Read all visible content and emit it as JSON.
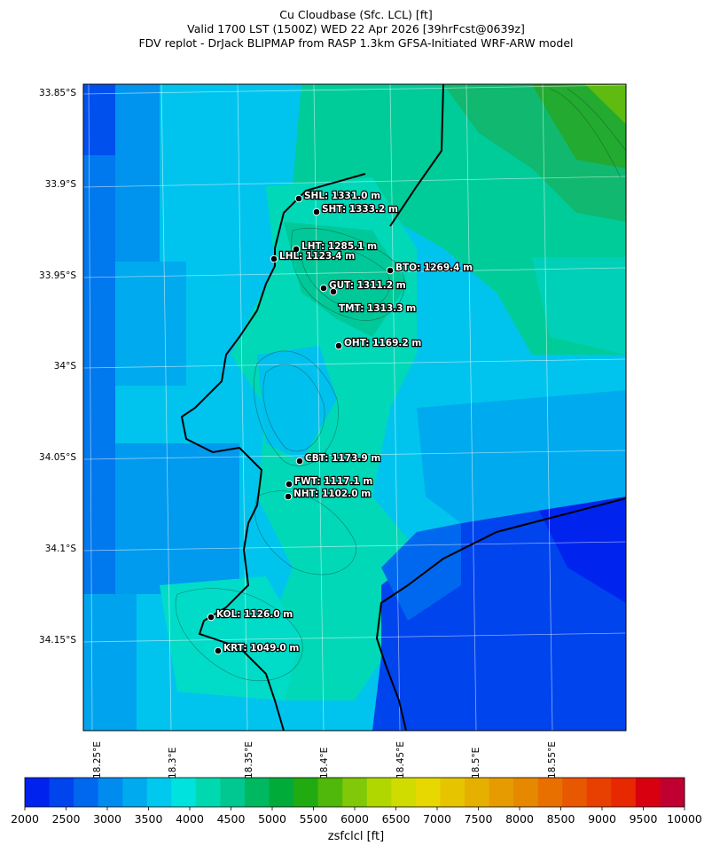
{
  "title": {
    "line1": "Cu Cloudbase (Sfc. LCL) [ft]",
    "line2": "Valid 1700 LST (1500Z) WED 22 Apr 2026 [39hrFcst@0639z]",
    "line3": "FDV replot - DrJack BLIPMAP from RASP 1.3km GFSA-Initiated WRF-ARW model"
  },
  "lat_labels": [
    "33.85°S",
    "33.9°S",
    "33.95°S",
    "34°S",
    "34.05°S",
    "34.1°S",
    "34.15°S"
  ],
  "lon_labels": [
    "18.25°E",
    "18.3°E",
    "18.35°E",
    "18.4°E",
    "18.45°E",
    "18.5°E",
    "18.55°E"
  ],
  "stations": [
    {
      "label": "SHL: 1331.0 m"
    },
    {
      "label": "SHT: 1333.2 m"
    },
    {
      "label": "LHT: 1285.1 m"
    },
    {
      "label": "LHL: 1123.4 m"
    },
    {
      "label": "BTO: 1269.4 m"
    },
    {
      "label": "GUT: 1311.2 m"
    },
    {
      "label": "TMT: 1313.3 m"
    },
    {
      "label": "OHT: 1169.2 m"
    },
    {
      "label": "CBT: 1173.9 m"
    },
    {
      "label": "FWT: 1117.1 m"
    },
    {
      "label": "NHT: 1102.0 m"
    },
    {
      "label": "KOL: 1126.0 m"
    },
    {
      "label": "KRT: 1049.0 m"
    }
  ],
  "colorbar": {
    "ticks": [
      "2000",
      "2500",
      "3000",
      "3500",
      "4000",
      "4500",
      "5000",
      "5500",
      "6000",
      "6500",
      "7000",
      "7500",
      "8000",
      "8500",
      "9000",
      "9500",
      "10000"
    ],
    "colors": [
      "#0022ee",
      "#0044ee",
      "#0068ee",
      "#008cee",
      "#00aaee",
      "#00c8ee",
      "#00e2dd",
      "#00d8b0",
      "#00c890",
      "#00b860",
      "#00ab3a",
      "#22ab10",
      "#50b80a",
      "#80c808",
      "#b0d800",
      "#d0dc00",
      "#e6d800",
      "#e6c400",
      "#e6b000",
      "#e69c00",
      "#e68800",
      "#e87000",
      "#e85800",
      "#e84000",
      "#e82800",
      "#d80010",
      "#c00030"
    ],
    "label": "zsfclcl [ft]"
  }
}
